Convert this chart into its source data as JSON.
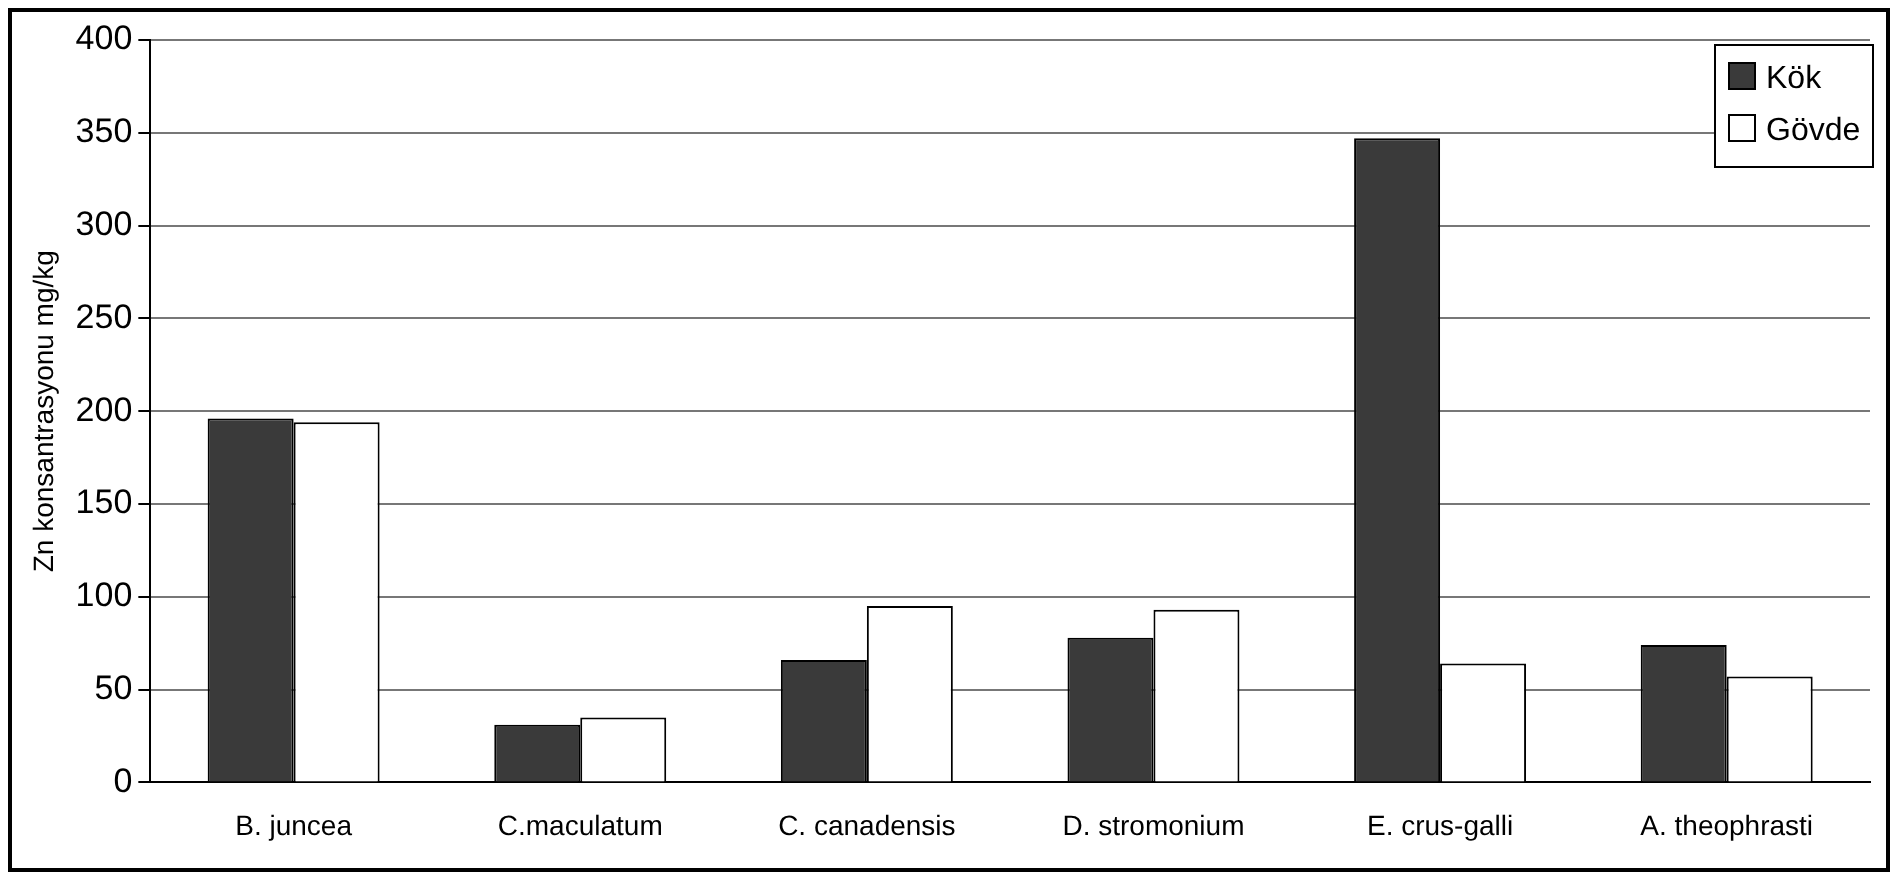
{
  "chart_data": {
    "type": "bar",
    "ylabel": "Zn konsantrasyonu mg/kg",
    "categories": [
      "B. juncea",
      "C.maculatum",
      "C. canadensis",
      "D. stromonium",
      "E. crus-galli",
      "A. theophrasti"
    ],
    "series": [
      {
        "name": "Kök",
        "color": "#3a3a3a",
        "values": [
          196,
          31,
          66,
          78,
          347,
          74
        ]
      },
      {
        "name": "Gövde",
        "color": "#ffffff",
        "values": [
          194,
          35,
          95,
          93,
          64,
          57
        ]
      }
    ],
    "ylim": [
      0,
      400
    ],
    "yticks": [
      0,
      50,
      100,
      150,
      200,
      250,
      300,
      350,
      400
    ],
    "grid": "y",
    "legend": "top right"
  }
}
